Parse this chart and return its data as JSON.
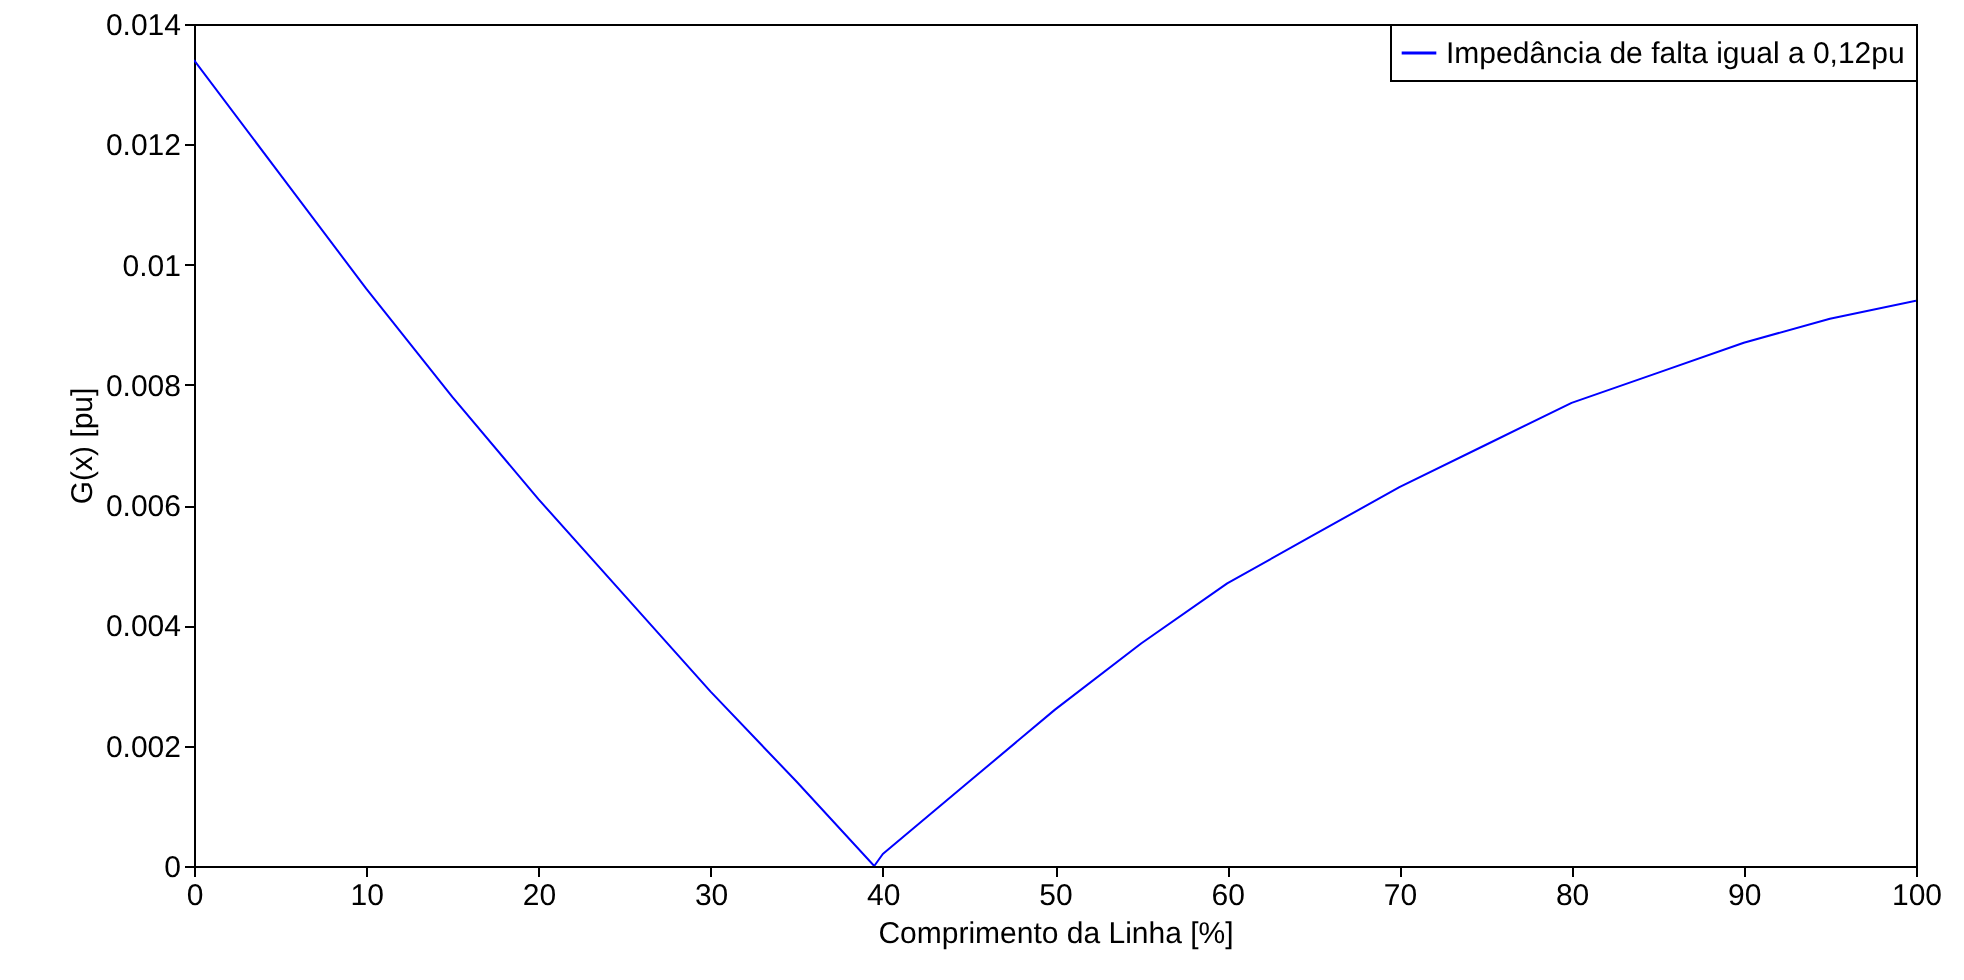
{
  "chart_data": {
    "type": "line",
    "xlabel": "Comprimento da Linha [%]",
    "ylabel": "G(x) [pu]",
    "xlim": [
      0,
      100
    ],
    "ylim": [
      0,
      0.014
    ],
    "xticks": [
      0,
      10,
      20,
      30,
      40,
      50,
      60,
      70,
      80,
      90,
      100
    ],
    "yticks": [
      0,
      0.002,
      0.004,
      0.006,
      0.008,
      0.01,
      0.012,
      0.014
    ],
    "grid": false,
    "legend": "top right",
    "line_style": "solid",
    "marker": "none",
    "series": [
      {
        "name": "Impedância de falta igual a 0,12pu",
        "color": "#0000ff",
        "x": [
          0,
          5,
          10,
          15,
          20,
          25,
          30,
          35,
          39.5,
          40,
          45,
          50,
          55,
          60,
          65,
          70,
          75,
          80,
          85,
          90,
          95,
          100
        ],
        "values": [
          0.0134,
          0.0115,
          0.0096,
          0.0078,
          0.0061,
          0.0045,
          0.0029,
          0.0014,
          0,
          0.0002,
          0.0014,
          0.0026,
          0.0037,
          0.0047,
          0.0055,
          0.0063,
          0.007,
          0.0077,
          0.0082,
          0.0087,
          0.0091,
          0.0094
        ]
      }
    ]
  }
}
